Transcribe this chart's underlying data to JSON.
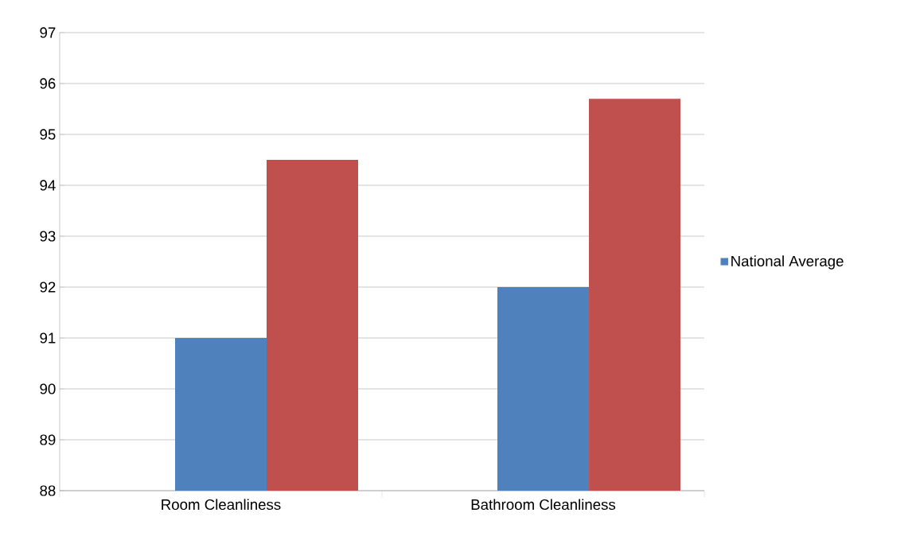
{
  "chart_data": {
    "type": "bar",
    "categories": [
      "Room Cleanliness",
      "Bathroom Cleanliness"
    ],
    "series": [
      {
        "name": "National Average",
        "color": "#4f81bd",
        "values": [
          91,
          92
        ]
      },
      {
        "color": "#c0504d",
        "values": [
          94.5,
          95.7
        ]
      }
    ],
    "ylim": [
      88,
      97
    ],
    "yticks": [
      88,
      89,
      90,
      91,
      92,
      93,
      94,
      95,
      96,
      97
    ],
    "grid": "y",
    "legend": "right"
  }
}
